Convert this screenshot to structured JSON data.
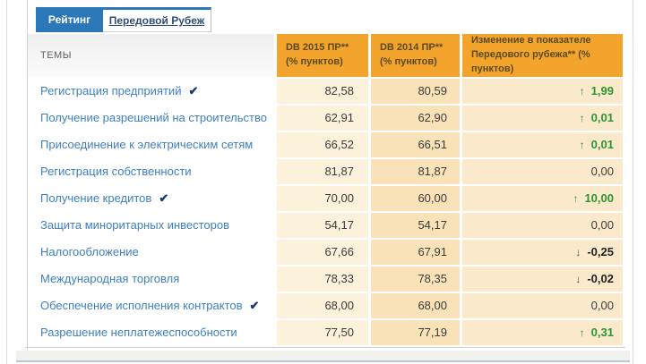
{
  "colors": {
    "tab_active_blue": "#2C77B8",
    "header_orange": "#F3A42D",
    "header_text_brown": "#5B4A1C",
    "col_db2015_bg": "#FCF1DB",
    "col_db2014_bg": "#F9E2B8",
    "col_change_bg": "#FAEACB",
    "topic_link_blue": "#3E7FC1",
    "positive_green": "#2D9434",
    "check_navy": "#16396E"
  },
  "tabs": [
    {
      "label": "Рейтинг",
      "active": true
    },
    {
      "label": "Передовой Рубеж",
      "active": false
    }
  ],
  "table": {
    "headers": {
      "topics": "ТЕМЫ",
      "db2015": "DB 2015 ПР**\n(% пунктов)",
      "db2014": "DB 2014 ПР**\n(% пунктов)",
      "change": "Изменение в показателе\nПередового рубежа** (% пунктов)"
    },
    "rows": [
      {
        "topic": "Регистрация предприятий",
        "check": "✔",
        "db2015": "82,58",
        "db2014": "80,59",
        "change": {
          "value": "1,99",
          "direction": "up",
          "arrow": "↑"
        }
      },
      {
        "topic": "Получение разрешений на строительство",
        "db2015": "62,91",
        "db2014": "62,90",
        "change": {
          "value": "0,01",
          "direction": "up",
          "arrow": "↑"
        }
      },
      {
        "topic": "Присоединение к электрическим сетям",
        "db2015": "66,52",
        "db2014": "66,51",
        "change": {
          "value": "0,01",
          "direction": "up",
          "arrow": "↑"
        }
      },
      {
        "topic": "Регистрация собственности",
        "db2015": "81,87",
        "db2014": "81,87",
        "change": {
          "value": "0,00",
          "direction": "zero"
        }
      },
      {
        "topic": "Получение кредитов",
        "check": "✔",
        "db2015": "70,00",
        "db2014": "60,00",
        "change": {
          "value": "10,00",
          "direction": "up",
          "arrow": "↑"
        }
      },
      {
        "topic": "Защита миноритарных инвесторов",
        "db2015": "54,17",
        "db2014": "54,17",
        "change": {
          "value": "0,00",
          "direction": "zero"
        }
      },
      {
        "topic": "Налогообложение",
        "db2015": "67,66",
        "db2014": "67,91",
        "change": {
          "value": "-0,25",
          "direction": "down",
          "arrow": "↓"
        }
      },
      {
        "topic": "Международная торговля",
        "db2015": "78,33",
        "db2014": "78,35",
        "change": {
          "value": "-0,02",
          "direction": "down",
          "arrow": "↓"
        }
      },
      {
        "topic": "Обеспечение исполнения контрактов",
        "check": "✔",
        "db2015": "68,00",
        "db2014": "68,00",
        "change": {
          "value": "0,00",
          "direction": "zero"
        }
      },
      {
        "topic": "Разрешение неплатежеспособности",
        "db2015": "77,50",
        "db2014": "77,19",
        "change": {
          "value": "0,31",
          "direction": "up",
          "arrow": "↑"
        }
      }
    ]
  }
}
